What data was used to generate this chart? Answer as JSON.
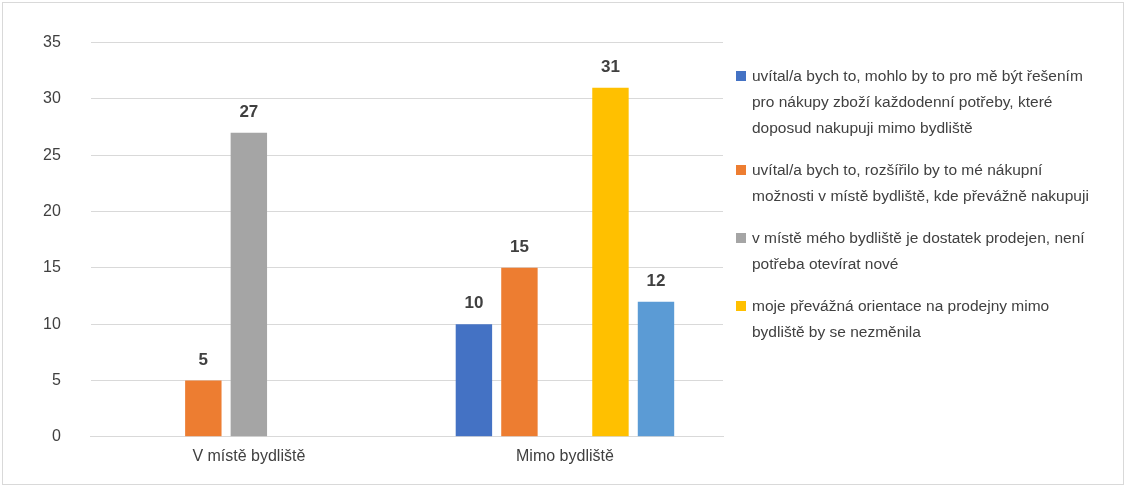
{
  "chart_data": {
    "type": "bar",
    "categories": [
      "V místě bydliště",
      "Mimo bydliště"
    ],
    "series": [
      {
        "name": "uvítal/a bych to, mohlo by to pro mě být řešením pro nákupy zboží každodenní potřeby, které doposud nakupuji mimo bydliště",
        "color": "#4472c4",
        "values": [
          null,
          10
        ]
      },
      {
        "name": "uvítal/a bych to, rozšířilo by to mé nákupní možnosti v místě bydliště, kde převážně nakupuji",
        "color": "#ed7d31",
        "values": [
          5,
          15
        ]
      },
      {
        "name": "v místě mého bydliště je dostatek prodejen, není potřeba otevírat nové",
        "color": "#a5a5a5",
        "values": [
          27,
          null
        ]
      },
      {
        "name": "moje převážná orientace na prodejny mimo bydliště by se nezměnila",
        "color": "#ffc000",
        "values": [
          null,
          31
        ]
      },
      {
        "color": "#5b9bd5",
        "values": [
          null,
          12
        ]
      }
    ],
    "ylim": [
      0,
      35
    ],
    "yticks": [
      0,
      5,
      10,
      15,
      20,
      25,
      30,
      35
    ],
    "grid": "y",
    "legend": "right",
    "data_labels": true
  }
}
